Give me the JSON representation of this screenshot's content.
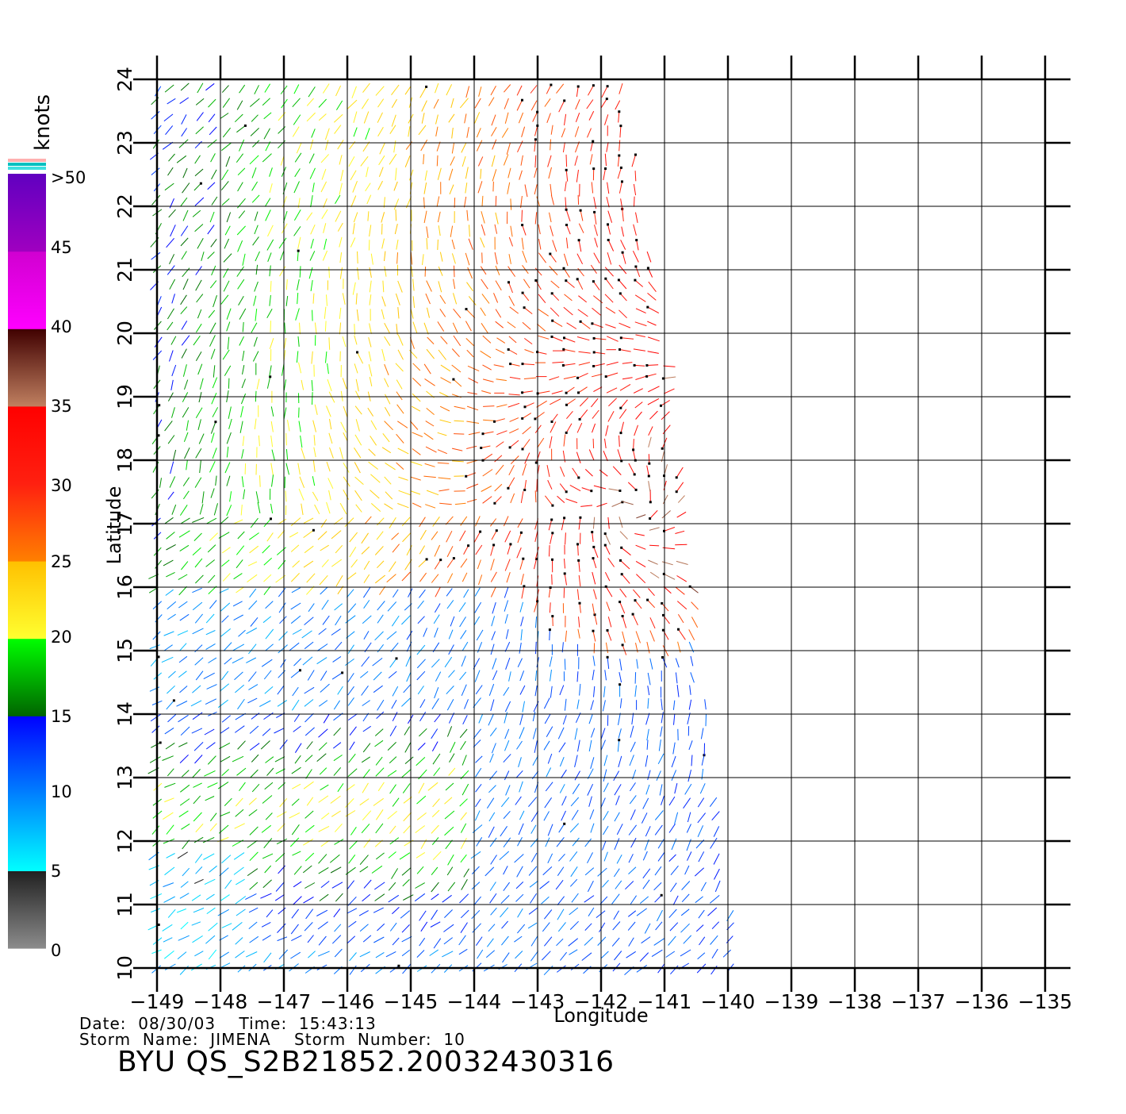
{
  "legend": {
    "unit": "knots",
    "labels": [
      ">50",
      "45",
      "40",
      "35",
      "30",
      "25",
      "20",
      "15",
      "10",
      "5",
      "0"
    ],
    "bands": [
      {
        "from": 0,
        "to": 5,
        "colors": [
          "#8c8c8c",
          "#202020"
        ]
      },
      {
        "from": 5,
        "to": 10,
        "colors": [
          "#00ffff",
          "#0080ff"
        ]
      },
      {
        "from": 10,
        "to": 15,
        "colors": [
          "#0080ff",
          "#0000ff"
        ]
      },
      {
        "from": 15,
        "to": 20,
        "colors": [
          "#006400",
          "#00ff00"
        ]
      },
      {
        "from": 20,
        "to": 25,
        "colors": [
          "#ffff30",
          "#ffc000"
        ]
      },
      {
        "from": 25,
        "to": 30,
        "colors": [
          "#ff8000",
          "#ff2010"
        ]
      },
      {
        "from": 30,
        "to": 35,
        "colors": [
          "#ff2010",
          "#ff0000"
        ]
      },
      {
        "from": 35,
        "to": 40,
        "colors": [
          "#c08060",
          "#400000"
        ]
      },
      {
        "from": 40,
        "to": 45,
        "colors": [
          "#ff00ff",
          "#d000d0"
        ]
      },
      {
        "from": 45,
        "to": 50,
        "colors": [
          "#a000c0",
          "#6000c0"
        ]
      }
    ],
    "top_stripes": [
      "#ffb0b0",
      "#00c0c0",
      "#40e0e0"
    ]
  },
  "map": {
    "lon_ticks": [
      "-149",
      "-148",
      "-147",
      "-146",
      "-145",
      "-144",
      "-143",
      "-142",
      "-141",
      "-140",
      "-139",
      "-138",
      "-137",
      "-136",
      "-135"
    ],
    "lat_ticks": [
      "10",
      "11",
      "12",
      "13",
      "14",
      "15",
      "16",
      "17",
      "18",
      "19",
      "20",
      "21",
      "22",
      "23",
      "24"
    ],
    "lon_range": [
      -149,
      -135
    ],
    "lat_range": [
      10,
      24
    ],
    "xlabel": "Longitude",
    "ylabel": "Latitude",
    "swath_corners": {
      "west_lon": -149.0,
      "north_east_lon": -141.6,
      "south_east_lon": -139.8,
      "north_lat": 24,
      "south_lat": 10
    }
  },
  "info": {
    "date_line": "Date:  08/30/03    Time:  15:43:13",
    "storm_line": "Storm  Name:  JIMENA    Storm  Number:  10",
    "product_id": "BYU  QS_S2B21852.20032430316"
  }
}
